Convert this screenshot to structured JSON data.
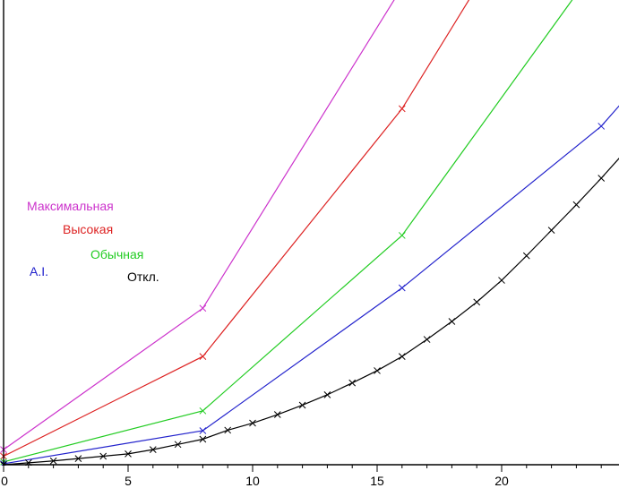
{
  "chart_data": {
    "type": "line",
    "title": "",
    "xlabel": "",
    "ylabel": "",
    "xlim": [
      0,
      24.8
    ],
    "ylim": [
      0,
      100
    ],
    "x_ticks": [
      {
        "value": 0,
        "label": "0"
      },
      {
        "value": 5,
        "label": "5"
      },
      {
        "value": 10,
        "label": "10"
      },
      {
        "value": 15,
        "label": "15"
      },
      {
        "value": 20,
        "label": "20"
      }
    ],
    "grid": false,
    "series": [
      {
        "name": "Максимальная",
        "color": "#cc33cc",
        "x": [
          0,
          8,
          16
        ],
        "y": [
          3.2,
          33.1,
          101
        ],
        "markers": [
          0,
          8
        ]
      },
      {
        "name": "Высокая",
        "color": "#dd2222",
        "x": [
          0,
          8,
          16,
          19
        ],
        "y": [
          1.8,
          22.9,
          75.3,
          101
        ],
        "markers": [
          0,
          8,
          16
        ]
      },
      {
        "name": "Обычная",
        "color": "#22cc22",
        "x": [
          0,
          8,
          16,
          23.2
        ],
        "y": [
          0.6,
          11.4,
          48.5,
          101
        ],
        "markers": [
          0,
          8,
          16
        ]
      },
      {
        "name": "A.I.",
        "color": "#2222cc",
        "x": [
          0,
          8,
          16,
          24,
          24.8
        ],
        "y": [
          0.2,
          7.2,
          37.4,
          71.6,
          76.4
        ],
        "markers": [
          0,
          8,
          16,
          24
        ]
      },
      {
        "name": "Откл.",
        "color": "#000000",
        "x": [
          0,
          1,
          2,
          3,
          4,
          5,
          6,
          7,
          8,
          9,
          10,
          11,
          12,
          13,
          14,
          15,
          16,
          17,
          18,
          19,
          20,
          21,
          22,
          23,
          24,
          24.8
        ],
        "y": [
          0,
          0.4,
          0.8,
          1.3,
          1.8,
          2.3,
          3.2,
          4.3,
          5.4,
          7.3,
          8.8,
          10.6,
          12.6,
          14.8,
          17.3,
          19.9,
          22.9,
          26.5,
          30.3,
          34.4,
          39.0,
          44.2,
          49.6,
          55.0,
          60.6,
          65.3
        ],
        "markers": [
          0,
          1,
          2,
          3,
          4,
          5,
          6,
          7,
          8,
          9,
          10,
          11,
          12,
          13,
          14,
          15,
          16,
          17,
          18,
          19,
          20,
          21,
          22,
          23,
          24
        ]
      }
    ],
    "legend": {
      "placement": "left-middle",
      "entries": [
        "Максимальная",
        "Высокая",
        "Обычная",
        "A.I.",
        "Откл."
      ]
    }
  }
}
